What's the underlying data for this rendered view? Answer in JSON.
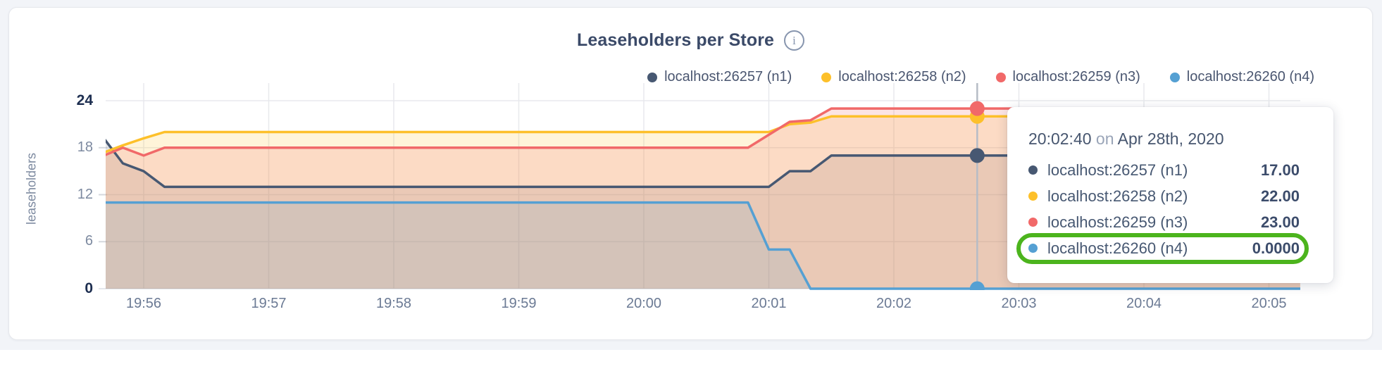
{
  "header": {
    "title": "Leaseholders per Store"
  },
  "chart_data": {
    "type": "area",
    "title": "Leaseholders per Store",
    "xlabel": "",
    "ylabel": "leaseholders",
    "ylim": [
      0,
      24
    ],
    "yticks": [
      0,
      6,
      12,
      18,
      24
    ],
    "xticks": [
      "19:56",
      "19:57",
      "19:58",
      "19:59",
      "20:00",
      "20:01",
      "20:02",
      "20:03",
      "20:04",
      "20:05"
    ],
    "x_start": "19:55:40",
    "x_end": "20:05:15",
    "grid": true,
    "legend_position": "top-right",
    "series": [
      {
        "name": "localhost:26257 (n1)",
        "color": "#475872",
        "fill_opacity": 0.15,
        "points": [
          [
            "19:55:40",
            19.5
          ],
          [
            "19:55:50",
            16
          ],
          [
            "19:56:00",
            15
          ],
          [
            "19:56:10",
            13
          ],
          [
            "20:01:00",
            13
          ],
          [
            "20:01:10",
            15
          ],
          [
            "20:01:20",
            15
          ],
          [
            "20:01:30",
            17
          ],
          [
            "20:05:15",
            17
          ]
        ]
      },
      {
        "name": "localhost:26258 (n2)",
        "color": "#fdc02a",
        "fill_opacity": 0.18,
        "points": [
          [
            "19:55:40",
            17.3
          ],
          [
            "19:55:50",
            18.3
          ],
          [
            "19:56:00",
            19.2
          ],
          [
            "19:56:10",
            20
          ],
          [
            "20:01:00",
            20
          ],
          [
            "20:01:10",
            21
          ],
          [
            "20:01:20",
            21.2
          ],
          [
            "20:01:30",
            22
          ],
          [
            "20:05:15",
            22
          ]
        ]
      },
      {
        "name": "localhost:26259 (n3)",
        "color": "#f16969",
        "fill_opacity": 0.18,
        "points": [
          [
            "19:55:40",
            16.9
          ],
          [
            "19:55:50",
            18
          ],
          [
            "19:56:00",
            17
          ],
          [
            "19:56:10",
            18
          ],
          [
            "20:00:50",
            18
          ],
          [
            "20:01:10",
            21.3
          ],
          [
            "20:01:20",
            21.5
          ],
          [
            "20:01:30",
            23
          ],
          [
            "20:05:15",
            23
          ]
        ]
      },
      {
        "name": "localhost:26260 (n4)",
        "color": "#55a0d3",
        "fill_opacity": 0.15,
        "points": [
          [
            "19:55:40",
            11
          ],
          [
            "20:00:50",
            11
          ],
          [
            "20:01:00",
            5
          ],
          [
            "20:01:10",
            5
          ],
          [
            "20:01:20",
            0
          ],
          [
            "20:05:15",
            0
          ]
        ]
      }
    ],
    "hover": {
      "time": "20:02:40",
      "values": [
        17,
        22,
        23,
        0
      ]
    }
  },
  "tooltip": {
    "time": "20:02:40",
    "separator": "on",
    "date": "Apr 28th, 2020",
    "rows": [
      {
        "label": "localhost:26257 (n1)",
        "value": "17.00"
      },
      {
        "label": "localhost:26258 (n2)",
        "value": "22.00"
      },
      {
        "label": "localhost:26259 (n3)",
        "value": "23.00"
      },
      {
        "label": "localhost:26260 (n4)",
        "value": "0.0000"
      }
    ],
    "highlighted_row_index": 3,
    "highlight_color": "#4cb41d"
  }
}
